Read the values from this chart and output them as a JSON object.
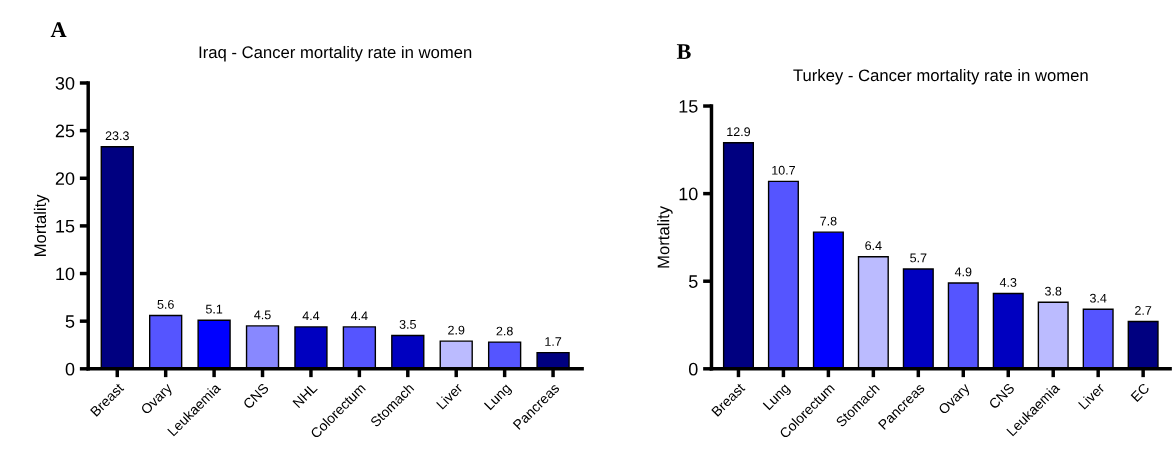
{
  "chart_data": [
    {
      "type": "bar",
      "title": "Iraq - Cancer mortality rate in women",
      "ylabel": "Mortality",
      "annotations": [
        "A"
      ],
      "categories": [
        "Breast",
        "Ovary",
        "Leukaemia",
        "CNS",
        "NHL",
        "Colorectum",
        "Stomach",
        "Liver",
        "Lung",
        "Pancreas"
      ],
      "values": [
        23.3,
        5.6,
        5.1,
        4.5,
        4.4,
        4.4,
        3.5,
        2.9,
        2.8,
        1.7
      ],
      "colors": [
        "#000080",
        "#5555ff",
        "#0000ff",
        "#8888ff",
        "#0000c0",
        "#5555ff",
        "#0000c0",
        "#bbbbff",
        "#5555ff",
        "#000080"
      ],
      "ylim": [
        0,
        30
      ],
      "yticks": [
        0,
        5,
        10,
        15,
        20,
        25,
        30
      ],
      "data_labels": true,
      "grid": false,
      "legend": false
    },
    {
      "type": "bar",
      "title": "Turkey - Cancer mortality rate in women",
      "ylabel": "Mortality",
      "annotations": [
        "B"
      ],
      "categories": [
        "Breast",
        "Lung",
        "Colorectum",
        "Stomach",
        "Pancreas",
        "Ovary",
        "CNS",
        "Leukaemia",
        "Liver",
        "EC"
      ],
      "values": [
        12.9,
        10.7,
        7.8,
        6.4,
        5.7,
        4.9,
        4.3,
        3.8,
        3.4,
        2.7
      ],
      "colors": [
        "#000080",
        "#5555ff",
        "#0000ff",
        "#bbbbff",
        "#0000c0",
        "#5555ff",
        "#0000c0",
        "#bbbbff",
        "#5555ff",
        "#000080"
      ],
      "ylim": [
        0,
        15
      ],
      "yticks": [
        0,
        5,
        10,
        15
      ],
      "data_labels": true,
      "grid": false,
      "legend": false
    }
  ]
}
